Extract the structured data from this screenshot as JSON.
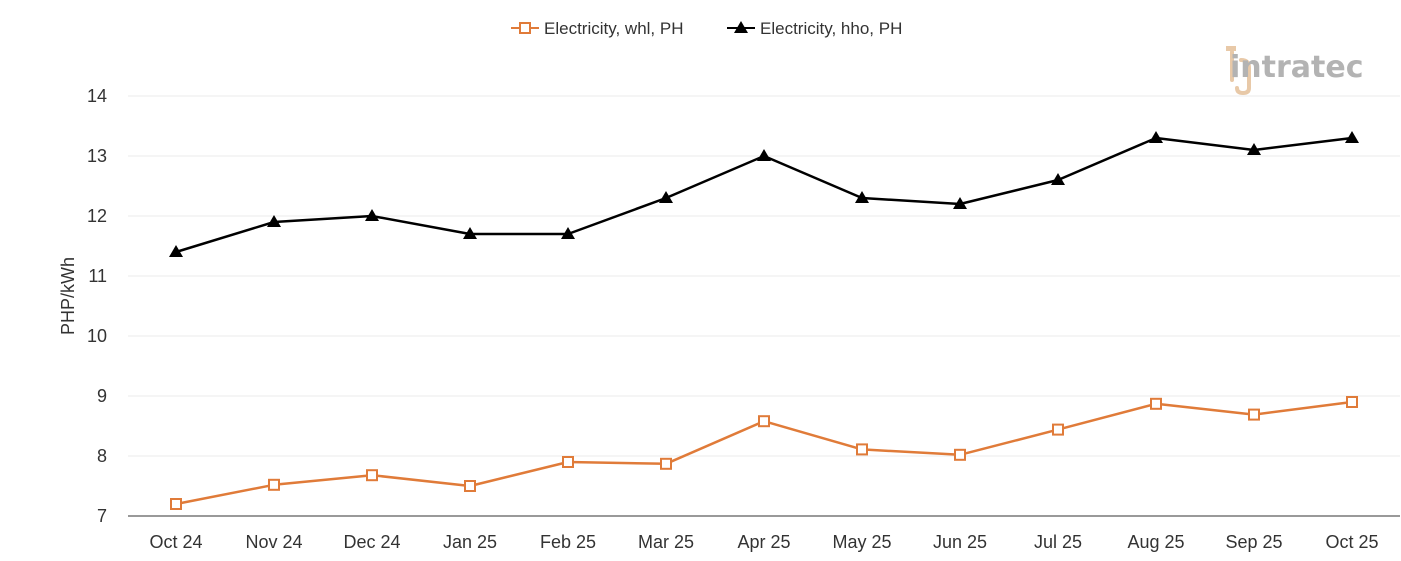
{
  "chart_data": {
    "type": "line",
    "title": "",
    "xlabel": "",
    "ylabel": "PHP/kWh",
    "ylim": [
      7,
      14
    ],
    "yticks": [
      7,
      8,
      9,
      10,
      11,
      12,
      13,
      14
    ],
    "grid": "horizontal",
    "legend_position": "top-center",
    "categories": [
      "Oct 24",
      "Nov 24",
      "Dec 24",
      "Jan 25",
      "Feb 25",
      "Mar 25",
      "Apr 25",
      "May 25",
      "Jun 25",
      "Jul 25",
      "Aug 25",
      "Sep 25",
      "Oct 25"
    ],
    "series": [
      {
        "name": "Electricity, whl, PH",
        "color": "#e07b39",
        "marker": "open-square",
        "values": [
          7.2,
          7.52,
          7.68,
          7.5,
          7.9,
          7.87,
          8.58,
          8.11,
          8.02,
          8.44,
          8.87,
          8.69,
          8.9
        ]
      },
      {
        "name": "Electricity, hho, PH",
        "color": "#000000",
        "marker": "filled-triangle",
        "values": [
          11.4,
          11.9,
          12.0,
          11.7,
          11.7,
          12.3,
          13.0,
          12.3,
          12.2,
          12.6,
          13.3,
          13.1,
          13.3
        ]
      }
    ]
  },
  "branding": {
    "logo_text": "intratec"
  }
}
